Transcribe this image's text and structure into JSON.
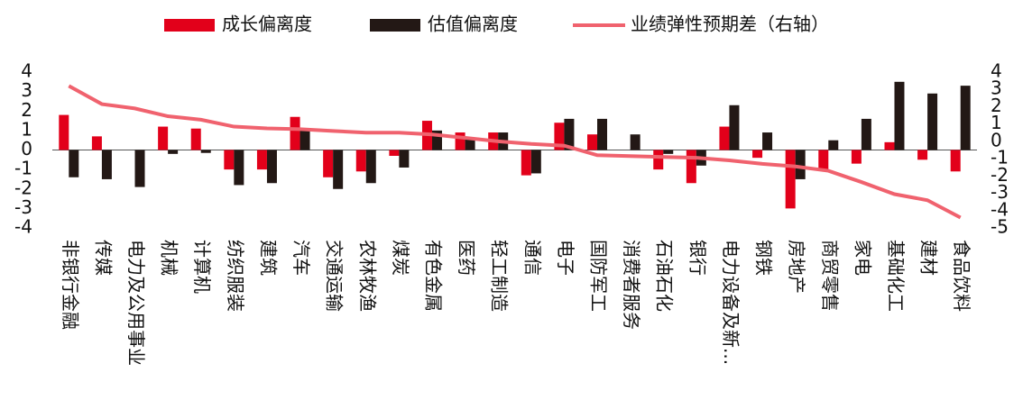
{
  "chart_data": {
    "type": "bar",
    "categories": [
      "非银行金融",
      "传媒",
      "电力及公用事业",
      "机械",
      "计算机",
      "纺织服装",
      "建筑",
      "汽车",
      "交通运输",
      "农林牧渔",
      "煤炭",
      "有色金属",
      "医药",
      "轻工制造",
      "通信",
      "电子",
      "国防军工",
      "消费者服务",
      "石油石化",
      "银行",
      "电力设备及新...",
      "钢铁",
      "房地产",
      "商贸零售",
      "家电",
      "基础化工",
      "建材",
      "食品饮料"
    ],
    "series": [
      {
        "name": "成长偏离度",
        "type": "bar",
        "color": "#e2001a",
        "values": [
          1.8,
          0.7,
          0,
          1.2,
          1.1,
          -1.0,
          -1.0,
          1.7,
          -1.4,
          -1.1,
          -0.3,
          1.5,
          0.9,
          0.9,
          -1.3,
          1.4,
          0.8,
          0,
          -1.0,
          -1.7,
          1.2,
          -0.4,
          -3.0,
          -1.0,
          -0.7,
          0.4,
          -0.5,
          -1.1
        ]
      },
      {
        "name": "估值偏离度",
        "type": "bar",
        "color": "#231815",
        "values": [
          -1.4,
          -1.5,
          -1.9,
          -0.2,
          -0.15,
          -1.8,
          -1.7,
          1.0,
          -2.0,
          -1.7,
          -0.9,
          1.0,
          0.6,
          0.9,
          -1.2,
          1.6,
          1.6,
          0.8,
          -0.2,
          -0.8,
          2.3,
          0.9,
          -1.5,
          0.5,
          1.6,
          3.5,
          2.9,
          3.3
        ]
      },
      {
        "name": "业绩弹性预期差（右轴）",
        "type": "line",
        "axis": "y2",
        "color": "#f0626e",
        "values": [
          3.2,
          2.15,
          1.9,
          1.45,
          1.25,
          0.85,
          0.75,
          0.7,
          0.6,
          0.5,
          0.5,
          0.4,
          0.2,
          0.0,
          -0.15,
          -0.25,
          -0.8,
          -0.85,
          -0.9,
          -0.95,
          -1.1,
          -1.3,
          -1.45,
          -1.7,
          -2.35,
          -3.05,
          -3.4,
          -4.4
        ]
      }
    ],
    "ylim": [
      -4,
      4
    ],
    "yticks": [
      -4,
      -3,
      -2,
      -1,
      0,
      1,
      2,
      3,
      4
    ],
    "y2lim": [
      -5,
      4
    ],
    "y2ticks": [
      -5,
      -4,
      -3,
      -2,
      -1,
      0,
      1,
      2,
      3,
      4
    ],
    "grid": false
  }
}
